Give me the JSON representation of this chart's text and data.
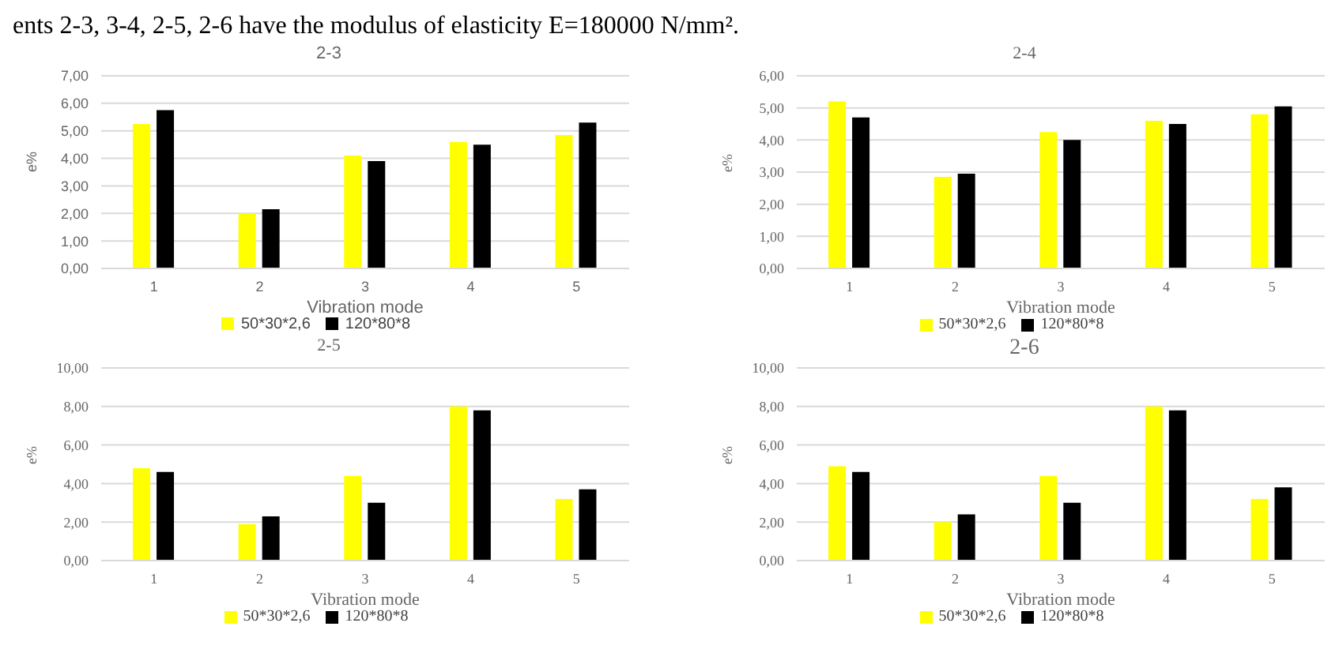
{
  "chart_data": [
    {
      "type": "bar",
      "title": "2-3",
      "xlabel": "Vibration mode",
      "ylabel": "e%",
      "annotations": [
        "ents 2-3, 3-4, 2-5, 2-6 have the modulus of elasticity E=180000 N/mm²."
      ],
      "categories": [
        "1",
        "2",
        "3",
        "4",
        "5"
      ],
      "series": [
        {
          "name": "50*30*2,6",
          "color": "#ffff00",
          "values": [
            5.25,
            2.0,
            4.1,
            4.6,
            4.85
          ]
        },
        {
          "name": "120*80*8",
          "color": "#000000",
          "values": [
            5.75,
            2.15,
            3.9,
            4.5,
            5.3
          ]
        }
      ],
      "ylim": [
        0,
        7
      ],
      "yticks": [
        {
          "value": 0,
          "label": "0,00"
        },
        {
          "value": 1,
          "label": "1,00"
        },
        {
          "value": 2,
          "label": "2,00"
        },
        {
          "value": 3,
          "label": "3,00"
        },
        {
          "value": 4,
          "label": "4,00"
        },
        {
          "value": 5,
          "label": "5,00"
        },
        {
          "value": 6,
          "label": "6,00"
        },
        {
          "value": 7,
          "label": "7,00"
        }
      ],
      "grid": "y",
      "legend": "bottom"
    },
    {
      "type": "bar",
      "title": "2-4",
      "xlabel": "Vibration mode",
      "ylabel": "e%",
      "categories": [
        "1",
        "2",
        "3",
        "4",
        "5"
      ],
      "series": [
        {
          "name": "50*30*2,6",
          "color": "#ffff00",
          "values": [
            5.2,
            2.85,
            4.25,
            4.6,
            4.8
          ]
        },
        {
          "name": "120*80*8",
          "color": "#000000",
          "values": [
            4.7,
            2.95,
            4.0,
            4.5,
            5.05
          ]
        }
      ],
      "ylim": [
        0,
        6
      ],
      "yticks": [
        {
          "value": 0,
          "label": "0,00"
        },
        {
          "value": 1,
          "label": "1,00"
        },
        {
          "value": 2,
          "label": "2,00"
        },
        {
          "value": 3,
          "label": "3,00"
        },
        {
          "value": 4,
          "label": "4,00"
        },
        {
          "value": 5,
          "label": "5,00"
        },
        {
          "value": 6,
          "label": "6,00"
        }
      ],
      "grid": "y",
      "legend": "bottom"
    },
    {
      "type": "bar",
      "title": "2-5",
      "xlabel": "Vibration mode",
      "ylabel": "e%",
      "categories": [
        "1",
        "2",
        "3",
        "4",
        "5"
      ],
      "series": [
        {
          "name": "50*30*2,6",
          "color": "#ffff00",
          "values": [
            4.8,
            1.9,
            4.4,
            8.0,
            3.2
          ]
        },
        {
          "name": "120*80*8",
          "color": "#000000",
          "values": [
            4.6,
            2.3,
            3.0,
            7.8,
            3.7
          ]
        }
      ],
      "ylim": [
        0,
        10
      ],
      "yticks": [
        {
          "value": 0,
          "label": "0,00"
        },
        {
          "value": 2,
          "label": "2,00"
        },
        {
          "value": 4,
          "label": "4,00"
        },
        {
          "value": 6,
          "label": "6,00"
        },
        {
          "value": 8,
          "label": "8,00"
        },
        {
          "value": 10,
          "label": "10,00"
        }
      ],
      "grid": "y",
      "legend": "bottom"
    },
    {
      "type": "bar",
      "title": "2-6",
      "xlabel": "Vibration mode",
      "ylabel": "e%",
      "categories": [
        "1",
        "2",
        "3",
        "4",
        "5"
      ],
      "series": [
        {
          "name": "50*30*2,6",
          "color": "#ffff00",
          "values": [
            4.9,
            2.0,
            4.4,
            8.0,
            3.2
          ]
        },
        {
          "name": "120*80*8",
          "color": "#000000",
          "values": [
            4.6,
            2.4,
            3.0,
            7.8,
            3.8
          ]
        }
      ],
      "ylim": [
        0,
        10
      ],
      "yticks": [
        {
          "value": 0,
          "label": "0,00"
        },
        {
          "value": 2,
          "label": "2,00"
        },
        {
          "value": 4,
          "label": "4,00"
        },
        {
          "value": 6,
          "label": "6,00"
        },
        {
          "value": 8,
          "label": "8,00"
        },
        {
          "value": 10,
          "label": "10,00"
        }
      ],
      "grid": "y",
      "legend": "bottom"
    }
  ]
}
